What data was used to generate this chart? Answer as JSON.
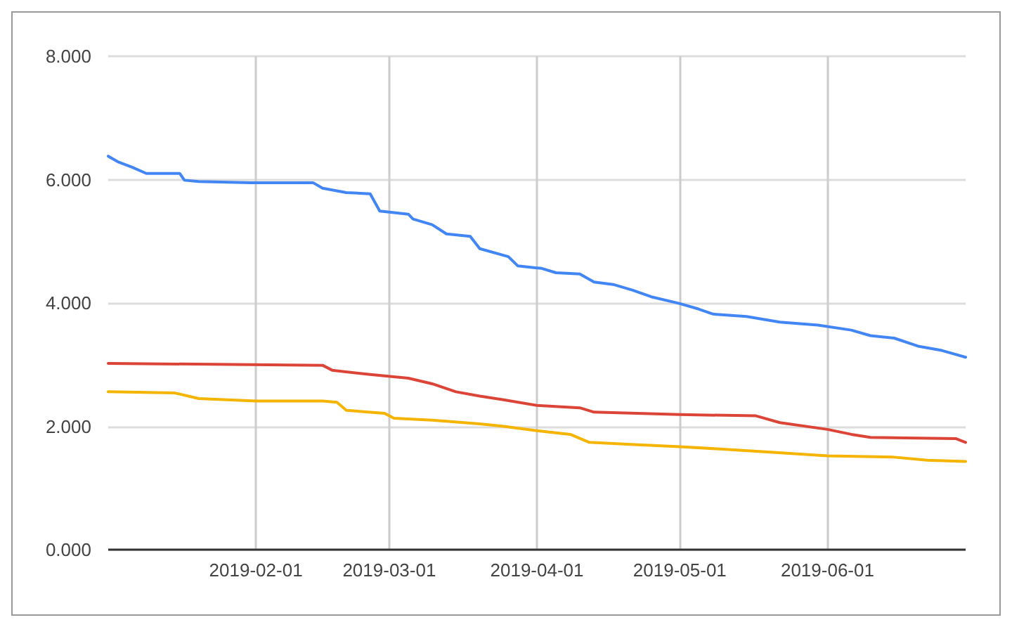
{
  "chart_data": {
    "type": "line",
    "xlim": [
      "2019-01-01",
      "2019-06-30"
    ],
    "xticks": [
      "2019-02-01",
      "2019-03-01",
      "2019-04-01",
      "2019-05-01",
      "2019-06-01"
    ],
    "ylim": [
      0,
      8
    ],
    "yticks": [
      {
        "value": 0,
        "label": "0.000"
      },
      {
        "value": 2,
        "label": "2.000"
      },
      {
        "value": 4,
        "label": "4.000"
      },
      {
        "value": 6,
        "label": "6.000"
      },
      {
        "value": 8,
        "label": "8.000"
      }
    ],
    "grid": true,
    "marker": "none",
    "line_style": "solid",
    "series": [
      {
        "color": "#4285f4",
        "x": [
          "2019-01-01",
          "2019-01-03",
          "2019-01-06",
          "2019-01-09",
          "2019-01-16",
          "2019-01-17",
          "2019-01-20",
          "2019-01-31",
          "2019-02-13",
          "2019-02-15",
          "2019-02-20",
          "2019-02-25",
          "2019-02-27",
          "2019-03-05",
          "2019-03-06",
          "2019-03-10",
          "2019-03-13",
          "2019-03-18",
          "2019-03-20",
          "2019-03-26",
          "2019-03-28",
          "2019-04-02",
          "2019-04-05",
          "2019-04-10",
          "2019-04-13",
          "2019-04-17",
          "2019-04-21",
          "2019-04-25",
          "2019-05-01",
          "2019-05-05",
          "2019-05-08",
          "2019-05-15",
          "2019-05-22",
          "2019-05-30",
          "2019-06-06",
          "2019-06-10",
          "2019-06-15",
          "2019-06-20",
          "2019-06-25",
          "2019-06-30"
        ],
        "values": [
          6.38,
          6.29,
          6.2,
          6.1,
          6.1,
          5.99,
          5.97,
          5.95,
          5.95,
          5.86,
          5.79,
          5.77,
          5.49,
          5.44,
          5.36,
          5.27,
          5.12,
          5.08,
          4.88,
          4.75,
          4.6,
          4.56,
          4.49,
          4.47,
          4.34,
          4.3,
          4.21,
          4.1,
          3.99,
          3.9,
          3.82,
          3.78,
          3.69,
          3.64,
          3.56,
          3.47,
          3.43,
          3.3,
          3.23,
          3.12
        ]
      },
      {
        "color": "#db4437",
        "x": [
          "2019-01-01",
          "2019-02-15",
          "2019-02-17",
          "2019-02-25",
          "2019-03-05",
          "2019-03-10",
          "2019-03-15",
          "2019-03-20",
          "2019-03-25",
          "2019-04-01",
          "2019-04-10",
          "2019-04-13",
          "2019-05-01",
          "2019-05-17",
          "2019-05-22",
          "2019-06-01",
          "2019-06-06",
          "2019-06-10",
          "2019-06-28",
          "2019-06-30"
        ],
        "values": [
          3.02,
          2.99,
          2.91,
          2.84,
          2.78,
          2.69,
          2.56,
          2.49,
          2.43,
          2.34,
          2.3,
          2.23,
          2.19,
          2.17,
          2.06,
          1.95,
          1.87,
          1.82,
          1.8,
          1.74
        ]
      },
      {
        "color": "#f4b400",
        "x": [
          "2019-01-01",
          "2019-01-15",
          "2019-01-20",
          "2019-02-01",
          "2019-02-15",
          "2019-02-18",
          "2019-02-20",
          "2019-02-28",
          "2019-03-02",
          "2019-03-10",
          "2019-03-20",
          "2019-03-25",
          "2019-04-01",
          "2019-04-08",
          "2019-04-12",
          "2019-04-20",
          "2019-05-01",
          "2019-05-10",
          "2019-05-20",
          "2019-06-01",
          "2019-06-15",
          "2019-06-22",
          "2019-06-30"
        ],
        "values": [
          2.56,
          2.54,
          2.45,
          2.41,
          2.41,
          2.39,
          2.26,
          2.21,
          2.13,
          2.1,
          2.04,
          2.0,
          1.93,
          1.87,
          1.74,
          1.71,
          1.67,
          1.63,
          1.58,
          1.52,
          1.5,
          1.45,
          1.43
        ]
      }
    ]
  }
}
